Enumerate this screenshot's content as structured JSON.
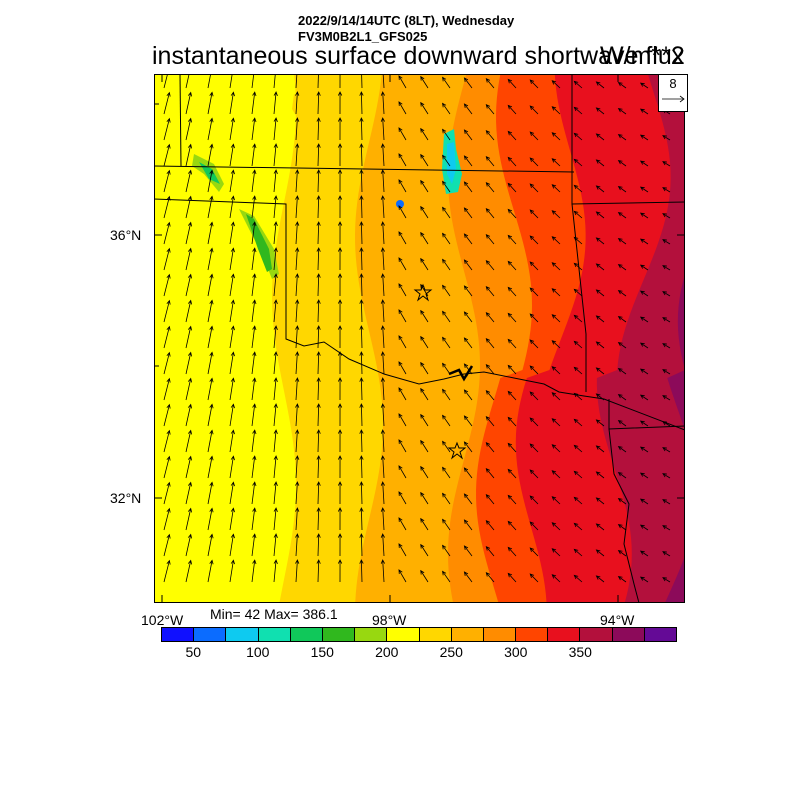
{
  "header": {
    "date_line": "2022/9/14/14UTC (8LT), Wednesday",
    "model_line": "FV3M0B2L1_GFS025",
    "field_title": "instantaneous surface downward shortwave flux",
    "units": "W/m**2"
  },
  "vector_legend": {
    "value": "8"
  },
  "axes": {
    "lat_labels": [
      "36°N",
      "32°N"
    ],
    "lon_labels": [
      "102°W",
      "98°W",
      "94°W"
    ]
  },
  "stats": {
    "text": "Min= 42 Max= 386.1"
  },
  "colorbar": {
    "colors": [
      "#1010ff",
      "#0b6cff",
      "#0ecaf0",
      "#10e0b0",
      "#10c85a",
      "#30b81e",
      "#98d810",
      "#ffff00",
      "#ffd700",
      "#ffb000",
      "#ff8c00",
      "#ff4500",
      "#e8101e",
      "#b3103c",
      "#8c0a5a",
      "#640a96"
    ],
    "labels": [
      "50",
      "100",
      "150",
      "200",
      "250",
      "300",
      "350"
    ]
  },
  "map_fill": {
    "bands": [
      "#ffff00",
      "#ffd700",
      "#ffb000",
      "#ff8c00",
      "#ff4500",
      "#e8101e",
      "#b3103c",
      "#8c0a5a"
    ]
  }
}
